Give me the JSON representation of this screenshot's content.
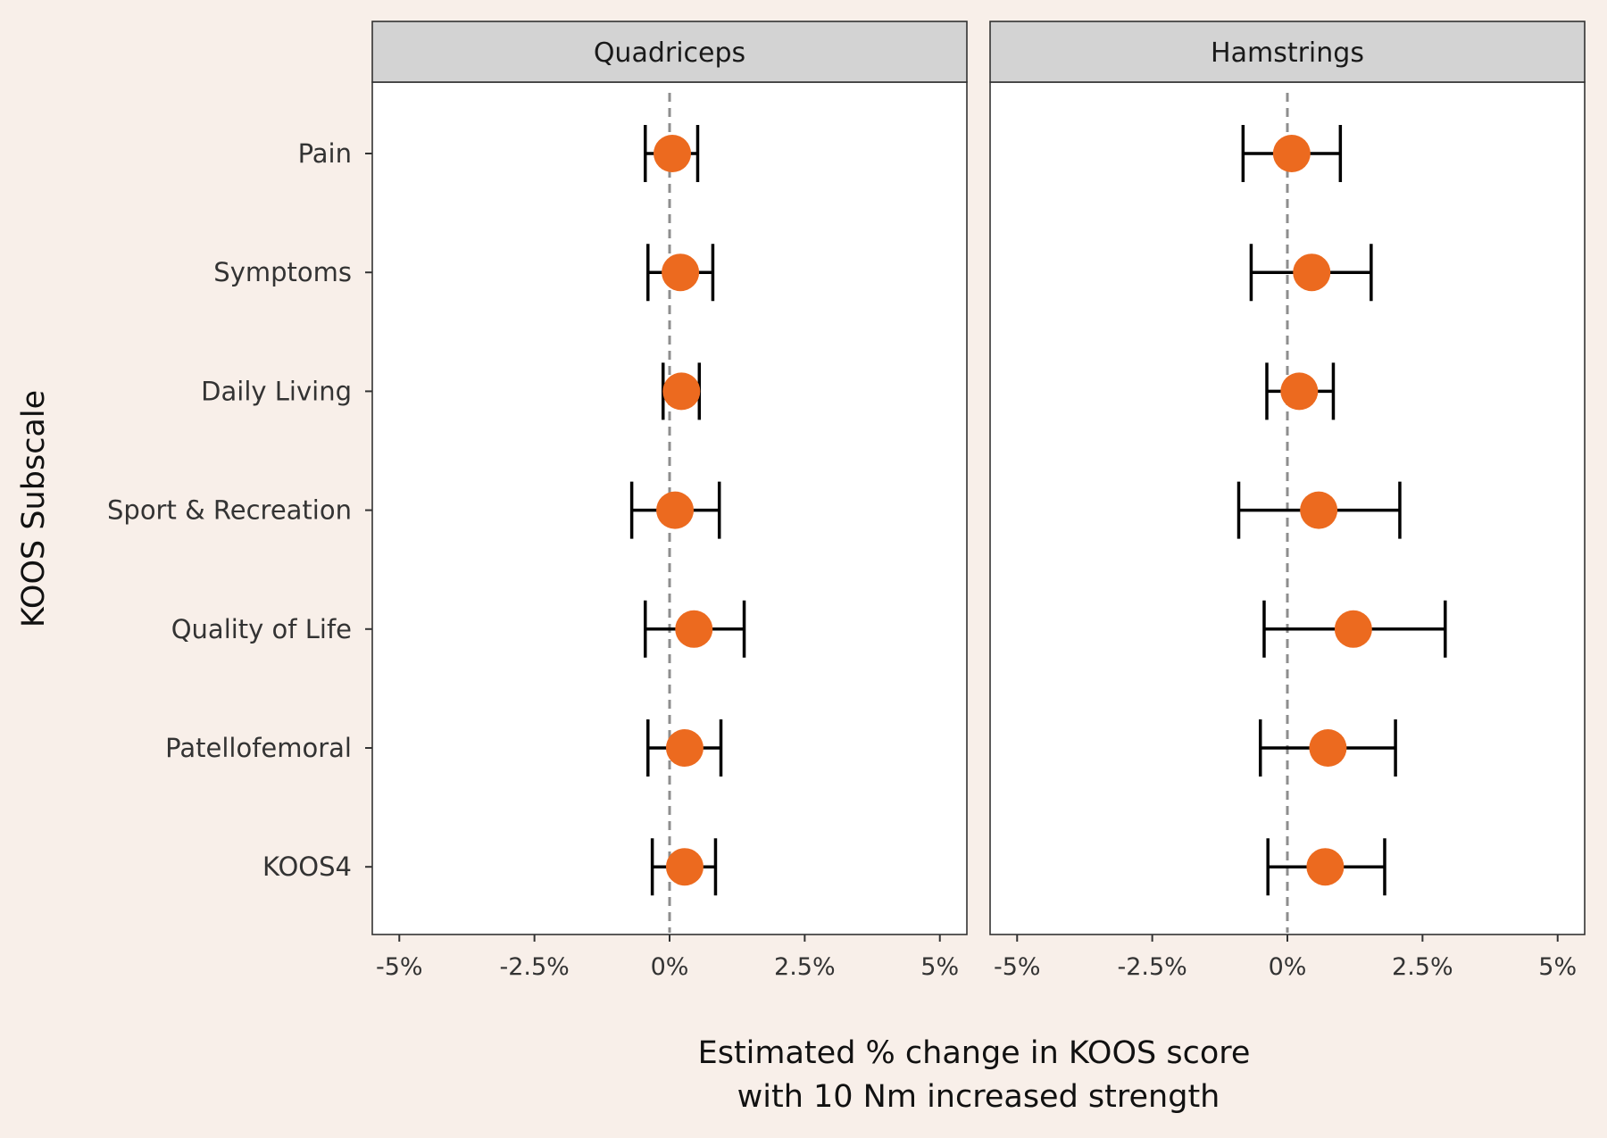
{
  "chart_data": {
    "type": "scatter",
    "xlabel": [
      "Estimated % change in KOOS score",
      "with 10 Nm increased strength"
    ],
    "ylabel": "KOOS Subscale",
    "xlim": [
      -5.5,
      5.5
    ],
    "x_ticks": [
      -5,
      -2.5,
      0,
      2.5,
      5
    ],
    "x_tick_labels": [
      "-5%",
      "-2.5%",
      "0%",
      "2.5%",
      "5%"
    ],
    "reference_line": 0,
    "categories": [
      "Pain",
      "Symptoms",
      "Daily Living",
      "Sport & Recreation",
      "Quality of Life",
      "Patellofemoral",
      "KOOS4"
    ],
    "point_color": "#ec6a1f",
    "panels": [
      {
        "title": "Quadriceps",
        "estimates": [
          0.05,
          0.2,
          0.22,
          0.1,
          0.45,
          0.28,
          0.28
        ],
        "lower": [
          -0.45,
          -0.4,
          -0.12,
          -0.7,
          -0.45,
          -0.4,
          -0.32
        ],
        "upper": [
          0.52,
          0.8,
          0.55,
          0.92,
          1.38,
          0.95,
          0.85
        ]
      },
      {
        "title": "Hamstrings",
        "estimates": [
          0.08,
          0.45,
          0.22,
          0.58,
          1.22,
          0.75,
          0.7
        ],
        "lower": [
          -0.82,
          -0.67,
          -0.38,
          -0.9,
          -0.43,
          -0.5,
          -0.36
        ],
        "upper": [
          0.98,
          1.55,
          0.85,
          2.08,
          2.92,
          2.0,
          1.8
        ]
      }
    ]
  }
}
